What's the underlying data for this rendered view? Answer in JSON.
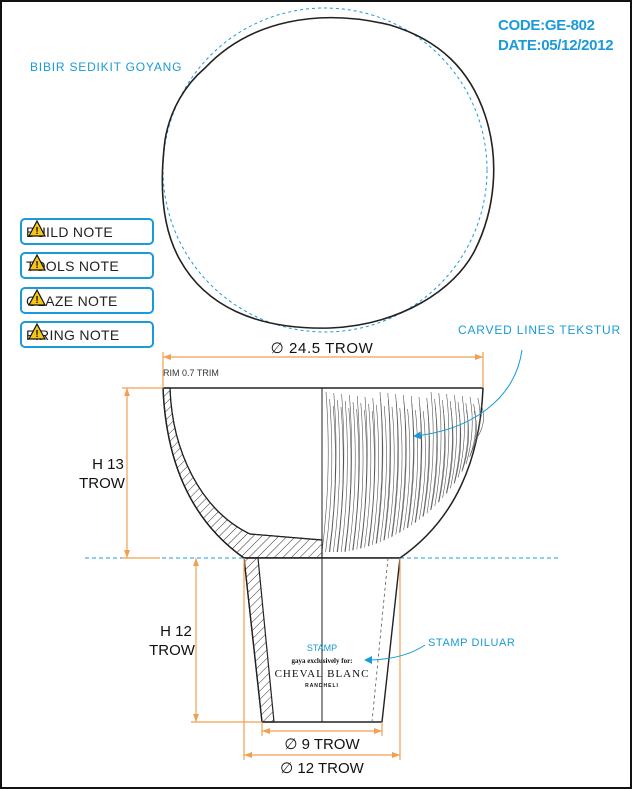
{
  "header": {
    "code": "CODE:GE-802",
    "date": "DATE:05/12/2012"
  },
  "labels": {
    "rim_wobble": "BIBIR SEDIKIT GOYANG",
    "carved": "CARVED LINES TEKSTUR",
    "stamp_outside": "STAMP DILUAR",
    "rim_trim": "RIM 0.7 TRIM",
    "stamp_title": "STAMP"
  },
  "dimensions": {
    "top_diameter": "∅ 24.5 TROW",
    "height_bowl_line1": "H 13",
    "height_bowl_line2": "TROW",
    "height_foot_line1": "H 12",
    "height_foot_line2": "TROW",
    "bottom_inner": "∅ 9 TROW",
    "bottom_outer": "∅ 12 TROW"
  },
  "stamp": {
    "line1": "gaya exclusively for:",
    "line2": "CHEVAL BLANC",
    "line3": "RANDHELI"
  },
  "notes": [
    {
      "label": "BUILD NOTE",
      "icon": "warning-icon"
    },
    {
      "label": "TOOLS NOTE",
      "icon": "warning-icon"
    },
    {
      "label": "GLAZE NOTE",
      "icon": "warning-icon"
    },
    {
      "label": "FIRING NOTE",
      "icon": "warning-icon"
    }
  ],
  "colors": {
    "accent_blue": "#1a9ad8",
    "dimension_orange": "#f0a050",
    "line": "#222222"
  }
}
